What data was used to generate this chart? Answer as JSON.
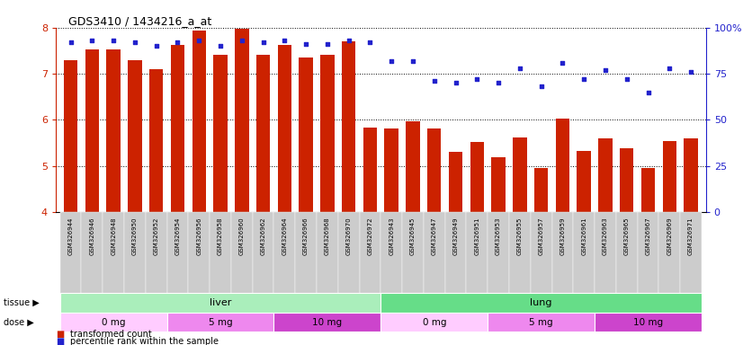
{
  "title": "GDS3410 / 1434216_a_at",
  "samples": [
    "GSM326944",
    "GSM326946",
    "GSM326948",
    "GSM326950",
    "GSM326952",
    "GSM326954",
    "GSM326956",
    "GSM326958",
    "GSM326960",
    "GSM326962",
    "GSM326964",
    "GSM326966",
    "GSM326968",
    "GSM326970",
    "GSM326972",
    "GSM326943",
    "GSM326945",
    "GSM326947",
    "GSM326949",
    "GSM326951",
    "GSM326953",
    "GSM326955",
    "GSM326957",
    "GSM326959",
    "GSM326961",
    "GSM326963",
    "GSM326965",
    "GSM326967",
    "GSM326969",
    "GSM326971"
  ],
  "bar_values": [
    7.3,
    7.52,
    7.52,
    7.3,
    7.1,
    7.62,
    7.93,
    7.42,
    7.98,
    7.42,
    7.62,
    7.35,
    7.42,
    7.7,
    5.84,
    5.82,
    5.97,
    5.82,
    5.3,
    5.52,
    5.2,
    5.62,
    4.95,
    6.02,
    5.32,
    5.6,
    5.38,
    4.95,
    5.55,
    5.6
  ],
  "percentile_values": [
    92,
    93,
    93,
    92,
    90,
    92,
    93,
    90,
    93,
    92,
    93,
    91,
    91,
    93,
    92,
    82,
    82,
    71,
    70,
    72,
    70,
    78,
    68,
    81,
    72,
    77,
    72,
    65,
    78,
    76
  ],
  "bar_color": "#cc2200",
  "percentile_color": "#2222cc",
  "ylim_left": [
    4,
    8
  ],
  "ylim_right": [
    0,
    100
  ],
  "yticks_left": [
    4,
    5,
    6,
    7,
    8
  ],
  "yticks_right": [
    0,
    25,
    50,
    75,
    100
  ],
  "ytick_labels_right": [
    "0",
    "25",
    "50",
    "75",
    "100%"
  ],
  "tissue_groups": [
    {
      "label": "liver",
      "start": 0,
      "end": 15,
      "color": "#aaeebb"
    },
    {
      "label": "lung",
      "start": 15,
      "end": 30,
      "color": "#66dd88"
    }
  ],
  "dose_groups": [
    {
      "label": "0 mg",
      "start": 0,
      "end": 5,
      "color": "#ffccff"
    },
    {
      "label": "5 mg",
      "start": 5,
      "end": 10,
      "color": "#ee88ee"
    },
    {
      "label": "10 mg",
      "start": 10,
      "end": 15,
      "color": "#dd55dd"
    },
    {
      "label": "0 mg",
      "start": 15,
      "end": 20,
      "color": "#ffccff"
    },
    {
      "label": "5 mg",
      "start": 20,
      "end": 25,
      "color": "#ee88ee"
    },
    {
      "label": "10 mg",
      "start": 25,
      "end": 30,
      "color": "#dd55dd"
    }
  ],
  "tissue_label": "tissue",
  "dose_label": "dose",
  "legend_bar_label": "transformed count",
  "legend_pct_label": "percentile rank within the sample",
  "n_liver": 15,
  "n_lung": 15
}
